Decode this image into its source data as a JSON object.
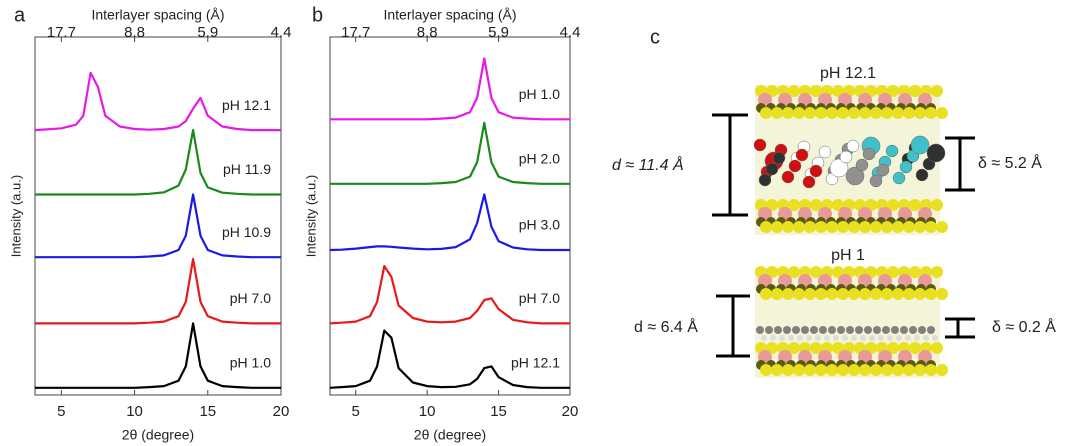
{
  "chart_data": [
    {
      "type": "line",
      "panel_label": "a",
      "x_label": "2θ (degree)",
      "y_label": "Intensity (a.u.)",
      "x2_label": "Interlayer spacing (Å)",
      "x": [
        3.2,
        4,
        5,
        6,
        6.5,
        7,
        7.5,
        8,
        9,
        10,
        11,
        12,
        13,
        13.5,
        14,
        14.5,
        15,
        16,
        17,
        18,
        19,
        20
      ],
      "xlim": [
        3.2,
        20
      ],
      "ylim": [
        0,
        100
      ],
      "xticks": [
        5,
        10,
        15,
        20
      ],
      "x2ticks": [
        {
          "value": 5,
          "label": "17.7"
        },
        {
          "value": 10,
          "label": "8.8"
        },
        {
          "value": 15,
          "label": "5.9"
        },
        {
          "value": 20,
          "label": "4.4"
        }
      ],
      "series": [
        {
          "name": "pH 12.1",
          "color": "#e619e6",
          "values": [
            74,
            74.2,
            74.5,
            75.5,
            78,
            90,
            86,
            78,
            75,
            74.3,
            74.1,
            74.3,
            75,
            76.5,
            80,
            83,
            78,
            75,
            74.3,
            74,
            74,
            74
          ]
        },
        {
          "name": "pH 11.9",
          "color": "#1a8a1a",
          "values": [
            56,
            56,
            56,
            56,
            56,
            56,
            56,
            56,
            56,
            56,
            56.2,
            56.6,
            58.5,
            63,
            74,
            62,
            58,
            56.5,
            56.2,
            56,
            56,
            56
          ]
        },
        {
          "name": "pH 10.9",
          "color": "#1a1ae6",
          "values": [
            38.5,
            38.5,
            38.5,
            38.5,
            38.5,
            38.5,
            38.5,
            38.5,
            38.5,
            38.5,
            38.7,
            39,
            40.5,
            44.5,
            56,
            44.5,
            40.5,
            39,
            38.7,
            38.5,
            38.5,
            38.5
          ]
        },
        {
          "name": "pH 7.0",
          "color": "#e61a1a",
          "values": [
            20,
            20,
            20,
            20,
            20,
            20,
            20,
            20,
            20,
            20,
            20.2,
            20.5,
            22,
            26,
            38,
            26,
            22,
            20.5,
            20.2,
            20,
            20,
            20
          ]
        },
        {
          "name": "pH 1.0",
          "color": "#000000",
          "values": [
            2,
            2,
            2,
            2,
            2,
            2,
            2,
            2,
            2,
            2,
            2.2,
            2.5,
            4,
            8,
            20,
            8,
            4,
            2.5,
            2.2,
            2,
            2,
            2
          ]
        }
      ]
    },
    {
      "type": "line",
      "panel_label": "b",
      "x_label": "2θ (degree)",
      "y_label": "Intensity (a.u.)",
      "x2_label": "Interlayer spacing (Å)",
      "x": [
        3.2,
        4,
        5,
        6,
        6.5,
        7,
        7.5,
        8,
        9,
        10,
        11,
        12,
        13,
        13.5,
        14,
        14.5,
        15,
        16,
        17,
        18,
        19,
        20
      ],
      "xlim": [
        3.2,
        20
      ],
      "ylim": [
        0,
        100
      ],
      "xticks": [
        5,
        10,
        15,
        20
      ],
      "x2ticks": [
        {
          "value": 5,
          "label": "17.7"
        },
        {
          "value": 10,
          "label": "8.8"
        },
        {
          "value": 15,
          "label": "5.9"
        },
        {
          "value": 20,
          "label": "4.4"
        }
      ],
      "series": [
        {
          "name": "pH 1.0",
          "color": "#e619e6",
          "values": [
            77,
            77,
            77,
            77,
            77,
            77,
            77,
            77,
            77,
            77,
            77.2,
            77.5,
            79,
            83,
            94,
            83,
            79,
            77.5,
            77.2,
            77,
            77,
            77
          ]
        },
        {
          "name": "pH 2.0",
          "color": "#1a8a1a",
          "values": [
            59,
            59,
            59,
            59,
            59,
            59,
            59,
            59,
            59,
            59,
            59.2,
            59.5,
            61,
            65,
            76,
            65,
            61,
            59.5,
            59.2,
            59,
            59,
            59
          ]
        },
        {
          "name": "pH 3.0",
          "color": "#1a1ae6",
          "values": [
            40.5,
            40.6,
            40.9,
            41.3,
            41.5,
            41.5,
            41.4,
            41.2,
            40.9,
            40.7,
            40.8,
            41.3,
            43.5,
            48,
            56,
            47,
            43,
            41.2,
            40.7,
            40.5,
            40.5,
            40.5
          ]
        },
        {
          "name": "pH 7.0",
          "color": "#e61a1a",
          "values": [
            20,
            20.2,
            20.5,
            22,
            26,
            36,
            33,
            25,
            21.5,
            20.5,
            20.3,
            20.5,
            21.5,
            23.5,
            26.5,
            27,
            24,
            21,
            20.3,
            20,
            20,
            20
          ]
        },
        {
          "name": "pH 12.1",
          "color": "#000000",
          "values": [
            2,
            2.2,
            2.5,
            4,
            8,
            18,
            16,
            7.5,
            3.5,
            2.5,
            2.2,
            2.3,
            3,
            4.5,
            7.5,
            8,
            5,
            2.8,
            2.2,
            2,
            2,
            2
          ]
        }
      ]
    }
  ],
  "panel_c": {
    "panel_label": "c",
    "top_title": "pH 12.1",
    "top_d": "d ≈ 11.4 Å",
    "top_delta": "δ ≈ 5.2 Å",
    "bottom_title": "pH 1",
    "bottom_d": "d ≈ 6.4 Å",
    "bottom_delta": "δ ≈ 0.2 Å"
  }
}
